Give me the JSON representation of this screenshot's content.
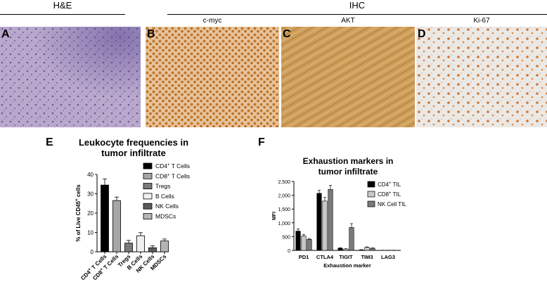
{
  "headers": {
    "he": "H&E",
    "ihc": "IHC"
  },
  "panels": {
    "a": {
      "letter": "A"
    },
    "b": {
      "letter": "B",
      "label": "c-myc"
    },
    "c": {
      "letter": "C",
      "label": "AKT"
    },
    "d": {
      "letter": "D",
      "label": "Ki-67"
    },
    "e": {
      "letter": "E"
    },
    "f": {
      "letter": "F"
    }
  },
  "colors": {
    "he_bg": "#b9a8cc",
    "myc_bg": "#e7c39d",
    "akt_bg": "#cf9f5c",
    "ki67_bg": "#ece8e4"
  },
  "chart_data": [
    {
      "type": "bar",
      "title_line1": "Leukocyte  frequencies in",
      "title_line2": "tumor infiltrate",
      "ylabel": "% of Live CD45+ cells",
      "ylim": [
        0,
        40
      ],
      "yticks": [
        0,
        10,
        20,
        30,
        40
      ],
      "categories": [
        "CD4+ T Cells",
        "CD8+ T Cells",
        "Tregs",
        "B Cells",
        "NK Cells",
        "MDSCs"
      ],
      "values": [
        34.5,
        26.5,
        4.5,
        8.3,
        2.1,
        5.6
      ],
      "errors": [
        3.2,
        1.8,
        1.4,
        1.6,
        1.0,
        1.0
      ],
      "colors": [
        "#000000",
        "#a6a6a6",
        "#7a7a7a",
        "#f0f0f0",
        "#5c5c5c",
        "#b5b5b5"
      ],
      "legend": [
        "CD4+ T Cells",
        "CD8+ T Cells",
        "Tregs",
        "B Cells",
        "NK Cells",
        "MDSCs"
      ]
    },
    {
      "type": "bar",
      "title_line1": "Exhaustion markers in",
      "title_line2": "tumor infiltrate",
      "ylabel": "MFI",
      "xlabel": "Exhaustion marker",
      "ylim": [
        0,
        2500
      ],
      "yticks": [
        "0",
        "500",
        "1,000",
        "1,500",
        "2,000",
        "2,500"
      ],
      "ytick_values": [
        0,
        500,
        1000,
        1500,
        2000,
        2500
      ],
      "categories": [
        "PD1",
        "CTLA4",
        "TIGIT",
        "TIM3",
        "LAG3"
      ],
      "series": [
        {
          "name": "CD4+ TIL",
          "color": "#000000",
          "values": [
            700,
            2070,
            80,
            20,
            5
          ],
          "errors": [
            80,
            110,
            15,
            5,
            2
          ]
        },
        {
          "name": "CD8+ TIL",
          "color": "#c8c8c8",
          "values": [
            520,
            1790,
            50,
            110,
            5
          ],
          "errors": [
            60,
            130,
            10,
            15,
            2
          ]
        },
        {
          "name": "NK Cell TIL",
          "color": "#7a7a7a",
          "values": [
            400,
            2210,
            830,
            80,
            5
          ],
          "errors": [
            30,
            150,
            140,
            10,
            2
          ]
        }
      ]
    }
  ]
}
